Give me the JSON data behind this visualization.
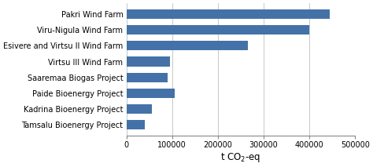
{
  "categories": [
    "Pakri Wind Farm",
    "Viru-Nigula Wind Farm",
    "Esivere and Virtsu II Wind Farm",
    "Virtsu III Wind Farm",
    "Saaremaa Biogas Project",
    "Paide Bioenergy Project",
    "Kadrina Bioenergy Project",
    "Tamsalu Bioenergy Project"
  ],
  "values": [
    445000,
    400000,
    265000,
    95000,
    90000,
    105000,
    55000,
    40000
  ],
  "bar_color": "#4472a8",
  "xlim": [
    0,
    500000
  ],
  "xtick_values": [
    0,
    100000,
    200000,
    300000,
    400000,
    500000
  ],
  "xtick_labels": [
    "0",
    "100000",
    "200000",
    "300000",
    "400000",
    "500000"
  ],
  "xlabel": "t CO$_2$-eq",
  "background_color": "#ffffff",
  "bar_height": 0.6,
  "grid_color": "#c8c8c8",
  "label_fontsize": 7.0,
  "tick_fontsize": 7.0,
  "xlabel_fontsize": 8.5
}
